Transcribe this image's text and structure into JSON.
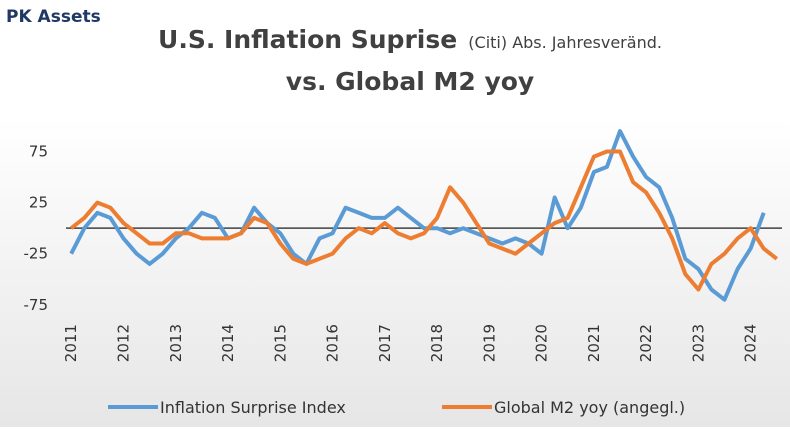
{
  "brand": "PK Assets",
  "chart_data": {
    "type": "line",
    "title": "U.S. Inflation Suprise",
    "title_note": "(Citi) Abs. Jahresveränd.",
    "title_line2": "vs. Global M2 yoy",
    "x": [
      2011,
      2011.25,
      2011.5,
      2011.75,
      2012,
      2012.25,
      2012.5,
      2012.75,
      2013,
      2013.25,
      2013.5,
      2013.75,
      2014,
      2014.25,
      2014.5,
      2014.75,
      2015,
      2015.25,
      2015.5,
      2015.75,
      2016,
      2016.25,
      2016.5,
      2016.75,
      2017,
      2017.25,
      2017.5,
      2017.75,
      2018,
      2018.25,
      2018.5,
      2018.75,
      2019,
      2019.25,
      2019.5,
      2019.75,
      2020,
      2020.25,
      2020.5,
      2020.75,
      2021,
      2021.25,
      2021.5,
      2021.75,
      2022,
      2022.25,
      2022.5,
      2022.75,
      2023,
      2023.25,
      2023.5,
      2023.75,
      2024,
      2024.25,
      2024.5
    ],
    "series": [
      {
        "name": "Inflation Surprise Index",
        "color": "#5b9bd5",
        "values": [
          -25,
          0,
          15,
          10,
          -10,
          -25,
          -35,
          -25,
          -10,
          0,
          15,
          10,
          -10,
          -5,
          20,
          5,
          -5,
          -25,
          -35,
          -10,
          -5,
          20,
          15,
          10,
          10,
          20,
          10,
          0,
          0,
          -5,
          0,
          -5,
          -10,
          -15,
          -10,
          -15,
          -25,
          30,
          0,
          20,
          55,
          60,
          95,
          70,
          50,
          40,
          10,
          -30,
          -40,
          -60,
          -70,
          -40,
          -20,
          15,
          null
        ]
      },
      {
        "name": "Global M2 yoy (angegl.)",
        "color": "#ed7d31",
        "values": [
          0,
          10,
          25,
          20,
          5,
          -5,
          -15,
          -15,
          -5,
          -5,
          -10,
          -10,
          -10,
          -5,
          10,
          5,
          -15,
          -30,
          -35,
          -30,
          -25,
          -10,
          0,
          -5,
          5,
          -5,
          -10,
          -5,
          10,
          40,
          25,
          5,
          -15,
          -20,
          -25,
          -15,
          -5,
          5,
          10,
          40,
          70,
          75,
          75,
          45,
          35,
          15,
          -10,
          -45,
          -60,
          -35,
          -25,
          -10,
          0,
          -20,
          -30
        ]
      }
    ],
    "xlim": [
      2010.9,
      2024.6
    ],
    "xticks": [
      2011,
      2012,
      2013,
      2014,
      2015,
      2016,
      2017,
      2018,
      2019,
      2020,
      2021,
      2022,
      2023,
      2024
    ],
    "ylim": [
      -85,
      100
    ],
    "yticks": [
      -75,
      -25,
      25,
      75
    ],
    "hline": 0,
    "legend": "bottom"
  }
}
